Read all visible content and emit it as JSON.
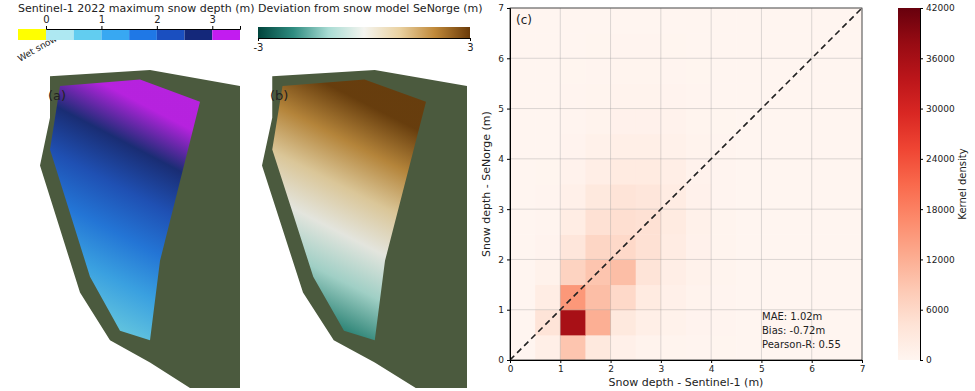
{
  "chart_data": [
    {
      "type": "map",
      "panel": "(a)",
      "title": "Sentinel-1 2022 maximum snow depth (m)",
      "colorbar": {
        "categories": [
          "Wet snow"
        ],
        "category_colors": [
          "#ffff00"
        ],
        "bounds": [
          0,
          0.5,
          1,
          1.5,
          2,
          2.5,
          3,
          3.5
        ],
        "colors": [
          "#aee8f2",
          "#62cdf0",
          "#38a8f2",
          "#1f78e6",
          "#1a4fc0",
          "#14287a",
          "#c21cf0"
        ],
        "ticks": [
          0,
          1,
          2,
          3
        ]
      }
    },
    {
      "type": "map",
      "panel": "(b)",
      "title": "Deviation from snow model SeNorge (m)",
      "colorbar": {
        "range": [
          -3,
          3
        ],
        "colors": [
          "#00443c",
          "#2f8c80",
          "#a9dcd4",
          "#f4f4ef",
          "#ead2a2",
          "#c0893a",
          "#6a3a08"
        ],
        "ticks": [
          -3,
          3
        ]
      }
    },
    {
      "type": "heatmap",
      "panel": "(c)",
      "x_label": "Snow depth - Sentinel-1 (m)",
      "y_label": "Snow depth - SeNorge (m)",
      "xlim": [
        0,
        7
      ],
      "ylim": [
        0,
        7
      ],
      "xticks": [
        0,
        1,
        2,
        3,
        4,
        5,
        6,
        7
      ],
      "yticks": [
        0,
        1,
        2,
        3,
        4,
        5,
        6,
        7
      ],
      "grid": true,
      "x_bins": [
        0,
        0.5,
        1,
        1.5,
        2,
        2.5,
        3,
        3.5,
        4,
        4.5,
        5,
        5.5,
        6,
        6.5,
        7
      ],
      "y_bins": [
        0,
        0.5,
        1,
        1.5,
        2,
        2.5,
        3,
        3.5,
        4,
        4.5,
        5,
        5.5,
        6,
        6.5,
        7
      ],
      "density": [
        [
          0,
          1500,
          9000,
          3000,
          1200,
          500,
          300,
          200,
          100,
          0,
          0,
          0,
          0,
          0
        ],
        [
          0,
          4000,
          36000,
          12000,
          3000,
          1500,
          800,
          400,
          200,
          0,
          0,
          0,
          0,
          0
        ],
        [
          0,
          2000,
          15000,
          10000,
          6000,
          2500,
          1200,
          600,
          250,
          0,
          0,
          0,
          0,
          0
        ],
        [
          0,
          800,
          7000,
          9000,
          10000,
          4000,
          1800,
          800,
          300,
          0,
          0,
          0,
          0,
          0
        ],
        [
          0,
          400,
          3500,
          6500,
          6000,
          4500,
          2200,
          900,
          300,
          0,
          0,
          0,
          0,
          0
        ],
        [
          0,
          250,
          2000,
          4500,
          5000,
          4500,
          2500,
          1000,
          300,
          0,
          0,
          0,
          0,
          0
        ],
        [
          0,
          150,
          1200,
          3000,
          4000,
          3500,
          2200,
          900,
          250,
          0,
          0,
          0,
          0,
          0
        ],
        [
          0,
          100,
          700,
          1800,
          2500,
          2500,
          1700,
          700,
          200,
          0,
          0,
          0,
          0,
          0
        ],
        [
          0,
          80,
          400,
          1000,
          1500,
          1500,
          1100,
          500,
          150,
          0,
          0,
          0,
          0,
          0
        ],
        [
          0,
          50,
          250,
          600,
          900,
          900,
          700,
          350,
          100,
          0,
          0,
          0,
          0,
          0
        ],
        [
          0,
          30,
          150,
          350,
          500,
          500,
          400,
          200,
          60,
          0,
          0,
          0,
          0,
          0
        ],
        [
          0,
          20,
          100,
          200,
          300,
          300,
          250,
          120,
          40,
          0,
          0,
          0,
          0,
          0
        ],
        [
          0,
          10,
          60,
          120,
          150,
          150,
          120,
          60,
          20,
          0,
          0,
          0,
          0,
          0
        ],
        [
          0,
          5,
          30,
          60,
          80,
          80,
          60,
          30,
          10,
          0,
          0,
          0,
          0,
          0
        ]
      ],
      "colorbar": {
        "title": "Kernel density",
        "range": [
          0,
          42000
        ],
        "ticks": [
          0,
          6000,
          12000,
          18000,
          24000,
          30000,
          36000,
          42000
        ]
      },
      "reference_line": {
        "x": [
          0,
          7
        ],
        "y": [
          0,
          7
        ],
        "line_style": "dashed"
      },
      "annotations": [
        "MAE: 1.02m",
        "Bias: -0.72m",
        "Pearson-R: 0.55"
      ]
    }
  ]
}
